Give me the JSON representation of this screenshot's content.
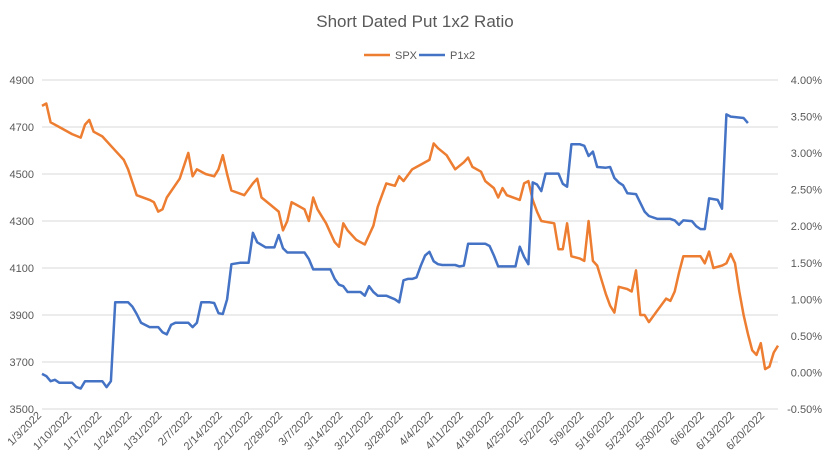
{
  "chart_data": {
    "type": "line",
    "title": "Short Dated Put 1x2 Ratio",
    "legend_position": "top-center",
    "left_axis": {
      "ticks": [
        3500,
        3700,
        3900,
        4100,
        4300,
        4500,
        4700,
        4900
      ],
      "labels": [
        "3500",
        "3700",
        "3900",
        "4100",
        "4300",
        "4500",
        "4700",
        "4900"
      ],
      "range": [
        3500,
        4900
      ]
    },
    "right_axis": {
      "ticks": [
        -0.5,
        0,
        0.5,
        1.0,
        1.5,
        2.0,
        2.5,
        3.0,
        3.5,
        4.0
      ],
      "labels": [
        "-0.50%",
        "0.00%",
        "0.50%",
        "1.00%",
        "1.50%",
        "2.00%",
        "2.50%",
        "3.00%",
        "3.50%",
        "4.00%"
      ],
      "range": [
        -0.5,
        4.0
      ]
    },
    "x_range": [
      0,
      171
    ],
    "x_tick_positions": [
      0,
      7,
      14,
      21,
      28,
      35,
      42,
      49,
      56,
      63,
      70,
      77,
      84,
      91,
      98,
      105,
      112,
      119,
      126,
      133,
      140,
      147,
      154,
      161,
      168
    ],
    "x_tick_labels": [
      "1/3/2022",
      "1/10/2022",
      "1/17/2022",
      "1/24/2022",
      "1/31/2022",
      "2/7/2022",
      "2/14/2022",
      "2/21/2022",
      "2/28/2022",
      "3/7/2022",
      "3/14/2022",
      "3/21/2022",
      "3/28/2022",
      "4/4/2022",
      "4/11/2022",
      "4/18/2022",
      "4/25/2022",
      "5/2/2022",
      "5/9/2022",
      "5/16/2022",
      "5/23/2022",
      "5/30/2022",
      "6/6/2022",
      "6/13/2022",
      "6/20/2022"
    ],
    "series": [
      {
        "name": "SPX",
        "axis": "left",
        "color": "#ED7D31",
        "points": [
          [
            0,
            4790
          ],
          [
            1,
            4800
          ],
          [
            2,
            4720
          ],
          [
            4,
            4700
          ],
          [
            7,
            4670
          ],
          [
            9,
            4655
          ],
          [
            10,
            4710
          ],
          [
            11,
            4730
          ],
          [
            12,
            4680
          ],
          [
            14,
            4660
          ],
          [
            16,
            4620
          ],
          [
            18,
            4580
          ],
          [
            19,
            4560
          ],
          [
            20,
            4520
          ],
          [
            22,
            4410
          ],
          [
            25,
            4390
          ],
          [
            26,
            4380
          ],
          [
            27,
            4340
          ],
          [
            28,
            4350
          ],
          [
            29,
            4400
          ],
          [
            32,
            4480
          ],
          [
            34,
            4590
          ],
          [
            35,
            4490
          ],
          [
            36,
            4520
          ],
          [
            38,
            4500
          ],
          [
            40,
            4490
          ],
          [
            41,
            4520
          ],
          [
            42,
            4580
          ],
          [
            43,
            4500
          ],
          [
            44,
            4430
          ],
          [
            47,
            4410
          ],
          [
            49,
            4460
          ],
          [
            50,
            4480
          ],
          [
            51,
            4400
          ],
          [
            53,
            4370
          ],
          [
            55,
            4340
          ],
          [
            56,
            4260
          ],
          [
            57,
            4300
          ],
          [
            58,
            4380
          ],
          [
            59,
            4370
          ],
          [
            61,
            4350
          ],
          [
            62,
            4300
          ],
          [
            63,
            4400
          ],
          [
            64,
            4350
          ],
          [
            66,
            4290
          ],
          [
            67,
            4250
          ],
          [
            68,
            4210
          ],
          [
            69,
            4190
          ],
          [
            70,
            4290
          ],
          [
            71,
            4260
          ],
          [
            73,
            4220
          ],
          [
            74,
            4210
          ],
          [
            75,
            4200
          ],
          [
            77,
            4280
          ],
          [
            78,
            4360
          ],
          [
            80,
            4460
          ],
          [
            82,
            4450
          ],
          [
            83,
            4490
          ],
          [
            84,
            4470
          ],
          [
            86,
            4520
          ],
          [
            88,
            4540
          ],
          [
            90,
            4560
          ],
          [
            91,
            4630
          ],
          [
            92,
            4610
          ],
          [
            94,
            4580
          ],
          [
            96,
            4520
          ],
          [
            98,
            4550
          ],
          [
            99,
            4570
          ],
          [
            100,
            4530
          ],
          [
            102,
            4510
          ],
          [
            103,
            4470
          ],
          [
            105,
            4440
          ],
          [
            106,
            4400
          ],
          [
            107,
            4440
          ],
          [
            108,
            4410
          ],
          [
            111,
            4390
          ],
          [
            112,
            4460
          ],
          [
            113,
            4470
          ],
          [
            114,
            4390
          ],
          [
            115,
            4340
          ],
          [
            116,
            4300
          ],
          [
            119,
            4290
          ],
          [
            120,
            4180
          ],
          [
            121,
            4180
          ],
          [
            122,
            4290
          ],
          [
            123,
            4150
          ],
          [
            125,
            4140
          ],
          [
            126,
            4130
          ],
          [
            127,
            4300
          ],
          [
            128,
            4130
          ],
          [
            129,
            4110
          ],
          [
            130,
            4050
          ],
          [
            131,
            3990
          ],
          [
            132,
            3940
          ],
          [
            133,
            3910
          ],
          [
            134,
            4020
          ],
          [
            136,
            4010
          ],
          [
            137,
            4000
          ],
          [
            138,
            4090
          ],
          [
            139,
            3900
          ],
          [
            140,
            3900
          ],
          [
            141,
            3870
          ],
          [
            143,
            3920
          ],
          [
            145,
            3970
          ],
          [
            146,
            3960
          ],
          [
            147,
            4000
          ],
          [
            148,
            4080
          ],
          [
            149,
            4150
          ],
          [
            150,
            4150
          ],
          [
            152,
            4150
          ],
          [
            153,
            4150
          ],
          [
            154,
            4120
          ],
          [
            155,
            4170
          ],
          [
            156,
            4100
          ],
          [
            158,
            4110
          ],
          [
            159,
            4120
          ],
          [
            160,
            4160
          ],
          [
            161,
            4120
          ],
          [
            162,
            4000
          ],
          [
            163,
            3900
          ],
          [
            164,
            3820
          ],
          [
            165,
            3750
          ],
          [
            166,
            3730
          ],
          [
            167,
            3780
          ],
          [
            168,
            3670
          ],
          [
            169,
            3680
          ],
          [
            170,
            3740
          ],
          [
            171,
            3770
          ]
        ]
      },
      {
        "name": "P1x2",
        "axis": "right",
        "color": "#4472C4",
        "points": [
          [
            0,
            -0.02
          ],
          [
            1,
            -0.05
          ],
          [
            2,
            -0.12
          ],
          [
            3,
            -0.1
          ],
          [
            4,
            -0.14
          ],
          [
            7,
            -0.14
          ],
          [
            8,
            -0.2
          ],
          [
            9,
            -0.22
          ],
          [
            10,
            -0.12
          ],
          [
            14,
            -0.12
          ],
          [
            15,
            -0.2
          ],
          [
            16,
            -0.12
          ],
          [
            17,
            0.96
          ],
          [
            20,
            0.96
          ],
          [
            21,
            0.9
          ],
          [
            22,
            0.8
          ],
          [
            23,
            0.68
          ],
          [
            25,
            0.62
          ],
          [
            27,
            0.62
          ],
          [
            28,
            0.55
          ],
          [
            29,
            0.52
          ],
          [
            30,
            0.65
          ],
          [
            31,
            0.68
          ],
          [
            33,
            0.68
          ],
          [
            34,
            0.68
          ],
          [
            35,
            0.62
          ],
          [
            36,
            0.68
          ],
          [
            37,
            0.96
          ],
          [
            39,
            0.96
          ],
          [
            40,
            0.95
          ],
          [
            41,
            0.81
          ],
          [
            42,
            0.8
          ],
          [
            43,
            1.0
          ],
          [
            44,
            1.48
          ],
          [
            46,
            1.5
          ],
          [
            48,
            1.5
          ],
          [
            49,
            1.91
          ],
          [
            50,
            1.78
          ],
          [
            52,
            1.71
          ],
          [
            54,
            1.71
          ],
          [
            55,
            1.88
          ],
          [
            56,
            1.7
          ],
          [
            57,
            1.64
          ],
          [
            59,
            1.64
          ],
          [
            61,
            1.64
          ],
          [
            62,
            1.55
          ],
          [
            63,
            1.41
          ],
          [
            64,
            1.41
          ],
          [
            65,
            1.41
          ],
          [
            67,
            1.41
          ],
          [
            68,
            1.28
          ],
          [
            69,
            1.2
          ],
          [
            70,
            1.18
          ],
          [
            71,
            1.1
          ],
          [
            74,
            1.1
          ],
          [
            75,
            1.05
          ],
          [
            76,
            1.18
          ],
          [
            77,
            1.1
          ],
          [
            78,
            1.05
          ],
          [
            79,
            1.05
          ],
          [
            80,
            1.05
          ],
          [
            82,
            1.0
          ],
          [
            83,
            0.96
          ],
          [
            84,
            1.26
          ],
          [
            85,
            1.28
          ],
          [
            86,
            1.28
          ],
          [
            87,
            1.3
          ],
          [
            88,
            1.46
          ],
          [
            89,
            1.6
          ],
          [
            90,
            1.65
          ],
          [
            91,
            1.52
          ],
          [
            92,
            1.48
          ],
          [
            93,
            1.47
          ],
          [
            96,
            1.47
          ],
          [
            97,
            1.45
          ],
          [
            98,
            1.46
          ],
          [
            99,
            1.76
          ],
          [
            103,
            1.76
          ],
          [
            104,
            1.73
          ],
          [
            105,
            1.6
          ],
          [
            106,
            1.45
          ],
          [
            110,
            1.45
          ],
          [
            111,
            1.72
          ],
          [
            112,
            1.58
          ],
          [
            113,
            1.48
          ],
          [
            114,
            2.6
          ],
          [
            115,
            2.57
          ],
          [
            116,
            2.48
          ],
          [
            117,
            2.72
          ],
          [
            120,
            2.72
          ],
          [
            121,
            2.58
          ],
          [
            122,
            2.54
          ],
          [
            123,
            3.12
          ],
          [
            125,
            3.12
          ],
          [
            126,
            3.1
          ],
          [
            127,
            2.96
          ],
          [
            128,
            3.02
          ],
          [
            129,
            2.81
          ],
          [
            131,
            2.8
          ],
          [
            132,
            2.81
          ],
          [
            133,
            2.66
          ],
          [
            134,
            2.6
          ],
          [
            135,
            2.56
          ],
          [
            136,
            2.45
          ],
          [
            138,
            2.44
          ],
          [
            139,
            2.32
          ],
          [
            140,
            2.2
          ],
          [
            141,
            2.14
          ],
          [
            143,
            2.1
          ],
          [
            145,
            2.1
          ],
          [
            146,
            2.1
          ],
          [
            147,
            2.08
          ],
          [
            148,
            2.02
          ],
          [
            149,
            2.08
          ],
          [
            151,
            2.07
          ],
          [
            152,
            2.0
          ],
          [
            153,
            1.96
          ],
          [
            154,
            1.96
          ],
          [
            155,
            2.38
          ],
          [
            157,
            2.36
          ],
          [
            158,
            2.24
          ],
          [
            159,
            3.53
          ],
          [
            160,
            3.5
          ],
          [
            163,
            3.48
          ],
          [
            164,
            3.41
          ]
        ]
      }
    ]
  }
}
